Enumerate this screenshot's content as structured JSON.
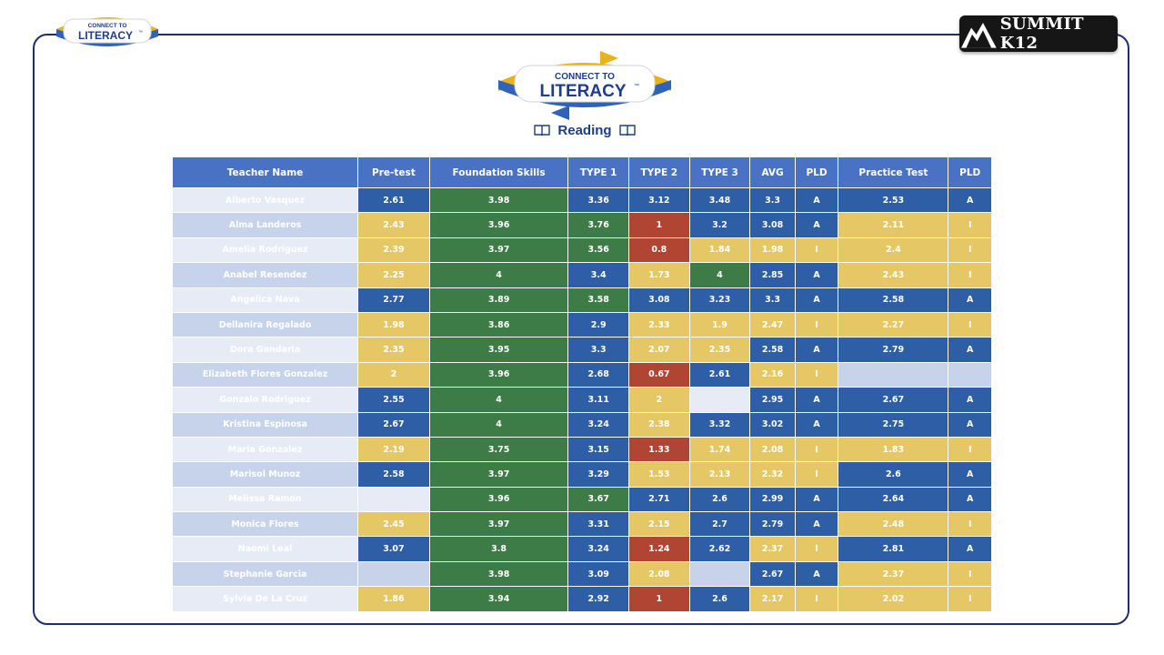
{
  "logo": {
    "small_line1": "CONNECT TO",
    "small_line2": "LITERACY",
    "big_line1": "CONNECT TO",
    "big_line2": "LITERACY",
    "tm": "™"
  },
  "brand": {
    "summit_text": "SUMMIT K12"
  },
  "subject": {
    "label": "Reading",
    "left_icon": "book-icon",
    "right_icon": "book-icon"
  },
  "colors": {
    "header": "#4a72c4",
    "blue": "#2e5ea6",
    "green": "#3d7c46",
    "yellow": "#e5c865",
    "red": "#b04533",
    "row_light": "#e6ebf6",
    "row_dark": "#c6d3ea",
    "frame": "#1f2d6b"
  },
  "table": {
    "headers": [
      "Teacher Name",
      "Pre-test",
      "Foundation Skills",
      "TYPE 1",
      "TYPE 2",
      "TYPE 3",
      "AVG",
      "PLD",
      "Practice Test",
      "PLD"
    ],
    "rows": [
      {
        "name": "Alberto Vasquez",
        "cells": [
          [
            "2.61",
            "blue"
          ],
          [
            "3.98",
            "green"
          ],
          [
            "3.36",
            "blue"
          ],
          [
            "3.12",
            "blue"
          ],
          [
            "3.48",
            "blue"
          ],
          [
            "3.3",
            "blue"
          ],
          [
            "A",
            "blue"
          ],
          [
            "2.53",
            "blue"
          ],
          [
            "A",
            "blue"
          ]
        ]
      },
      {
        "name": "Alma Landeros",
        "cells": [
          [
            "2.43",
            "yellow"
          ],
          [
            "3.96",
            "green"
          ],
          [
            "3.76",
            "green"
          ],
          [
            "1",
            "red"
          ],
          [
            "3.2",
            "blue"
          ],
          [
            "3.08",
            "blue"
          ],
          [
            "A",
            "blue"
          ],
          [
            "2.11",
            "yellow"
          ],
          [
            "I",
            "yellow"
          ]
        ]
      },
      {
        "name": "Amelia Rodriguez",
        "cells": [
          [
            "2.39",
            "yellow"
          ],
          [
            "3.97",
            "green"
          ],
          [
            "3.56",
            "green"
          ],
          [
            "0.8",
            "red"
          ],
          [
            "1.84",
            "yellow"
          ],
          [
            "1.98",
            "yellow"
          ],
          [
            "I",
            "yellow"
          ],
          [
            "2.4",
            "yellow"
          ],
          [
            "I",
            "yellow"
          ]
        ]
      },
      {
        "name": "Anabel Resendez",
        "cells": [
          [
            "2.25",
            "yellow"
          ],
          [
            "4",
            "green"
          ],
          [
            "3.4",
            "blue"
          ],
          [
            "1.73",
            "yellow"
          ],
          [
            "4",
            "green"
          ],
          [
            "2.85",
            "blue"
          ],
          [
            "A",
            "blue"
          ],
          [
            "2.43",
            "yellow"
          ],
          [
            "I",
            "yellow"
          ]
        ]
      },
      {
        "name": "Angelica Nava",
        "cells": [
          [
            "2.77",
            "blue"
          ],
          [
            "3.89",
            "green"
          ],
          [
            "3.58",
            "green"
          ],
          [
            "3.08",
            "blue"
          ],
          [
            "3.23",
            "blue"
          ],
          [
            "3.3",
            "blue"
          ],
          [
            "A",
            "blue"
          ],
          [
            "2.58",
            "blue"
          ],
          [
            "A",
            "blue"
          ]
        ]
      },
      {
        "name": "Dellanira Regalado",
        "cells": [
          [
            "1.98",
            "yellow"
          ],
          [
            "3.86",
            "green"
          ],
          [
            "2.9",
            "blue"
          ],
          [
            "2.33",
            "yellow"
          ],
          [
            "1.9",
            "yellow"
          ],
          [
            "2.47",
            "yellow"
          ],
          [
            "I",
            "yellow"
          ],
          [
            "2.27",
            "yellow"
          ],
          [
            "I",
            "yellow"
          ]
        ]
      },
      {
        "name": "Dora Gandaria",
        "cells": [
          [
            "2.35",
            "yellow"
          ],
          [
            "3.95",
            "green"
          ],
          [
            "3.3",
            "blue"
          ],
          [
            "2.07",
            "yellow"
          ],
          [
            "2.35",
            "yellow"
          ],
          [
            "2.58",
            "blue"
          ],
          [
            "A",
            "blue"
          ],
          [
            "2.79",
            "blue"
          ],
          [
            "A",
            "blue"
          ]
        ]
      },
      {
        "name": "Elizabeth Flores Gonzalez",
        "cells": [
          [
            "2",
            "yellow"
          ],
          [
            "3.96",
            "green"
          ],
          [
            "2.68",
            "blue"
          ],
          [
            "0.67",
            "red"
          ],
          [
            "2.61",
            "blue"
          ],
          [
            "2.16",
            "yellow"
          ],
          [
            "I",
            "yellow"
          ],
          [
            "",
            "empty"
          ],
          [
            "",
            "empty"
          ]
        ]
      },
      {
        "name": "Gonzalo Rodriguez",
        "cells": [
          [
            "2.55",
            "blue"
          ],
          [
            "4",
            "green"
          ],
          [
            "3.11",
            "blue"
          ],
          [
            "2",
            "yellow"
          ],
          [
            "",
            "empty"
          ],
          [
            "2.95",
            "blue"
          ],
          [
            "A",
            "blue"
          ],
          [
            "2.67",
            "blue"
          ],
          [
            "A",
            "blue"
          ]
        ]
      },
      {
        "name": "Kristina Espinosa",
        "cells": [
          [
            "2.67",
            "blue"
          ],
          [
            "4",
            "green"
          ],
          [
            "3.24",
            "blue"
          ],
          [
            "2.38",
            "yellow"
          ],
          [
            "3.32",
            "blue"
          ],
          [
            "3.02",
            "blue"
          ],
          [
            "A",
            "blue"
          ],
          [
            "2.75",
            "blue"
          ],
          [
            "A",
            "blue"
          ]
        ]
      },
      {
        "name": "Maria Gonzalez",
        "cells": [
          [
            "2.19",
            "yellow"
          ],
          [
            "3.75",
            "green"
          ],
          [
            "3.15",
            "blue"
          ],
          [
            "1.33",
            "red"
          ],
          [
            "1.74",
            "yellow"
          ],
          [
            "2.08",
            "yellow"
          ],
          [
            "I",
            "yellow"
          ],
          [
            "1.83",
            "yellow"
          ],
          [
            "I",
            "yellow"
          ]
        ]
      },
      {
        "name": "Marisol Munoz",
        "cells": [
          [
            "2.58",
            "blue"
          ],
          [
            "3.97",
            "green"
          ],
          [
            "3.29",
            "blue"
          ],
          [
            "1.53",
            "yellow"
          ],
          [
            "2.13",
            "yellow"
          ],
          [
            "2.32",
            "yellow"
          ],
          [
            "I",
            "yellow"
          ],
          [
            "2.6",
            "blue"
          ],
          [
            "A",
            "blue"
          ]
        ]
      },
      {
        "name": "Melissa Ramon",
        "cells": [
          [
            "",
            "empty"
          ],
          [
            "3.96",
            "green"
          ],
          [
            "3.67",
            "green"
          ],
          [
            "2.71",
            "blue"
          ],
          [
            "2.6",
            "blue"
          ],
          [
            "2.99",
            "blue"
          ],
          [
            "A",
            "blue"
          ],
          [
            "2.64",
            "blue"
          ],
          [
            "A",
            "blue"
          ]
        ]
      },
      {
        "name": "Monica Flores",
        "cells": [
          [
            "2.45",
            "yellow"
          ],
          [
            "3.97",
            "green"
          ],
          [
            "3.31",
            "blue"
          ],
          [
            "2.15",
            "yellow"
          ],
          [
            "2.7",
            "blue"
          ],
          [
            "2.79",
            "blue"
          ],
          [
            "A",
            "blue"
          ],
          [
            "2.48",
            "yellow"
          ],
          [
            "I",
            "yellow"
          ]
        ]
      },
      {
        "name": "Naomi Leal",
        "cells": [
          [
            "3.07",
            "blue"
          ],
          [
            "3.8",
            "green"
          ],
          [
            "3.24",
            "blue"
          ],
          [
            "1.24",
            "red"
          ],
          [
            "2.62",
            "blue"
          ],
          [
            "2.37",
            "yellow"
          ],
          [
            "I",
            "yellow"
          ],
          [
            "2.81",
            "blue"
          ],
          [
            "A",
            "blue"
          ]
        ]
      },
      {
        "name": "Stephanie Garcia",
        "cells": [
          [
            "",
            "empty"
          ],
          [
            "3.98",
            "green"
          ],
          [
            "3.09",
            "blue"
          ],
          [
            "2.08",
            "yellow"
          ],
          [
            "",
            "empty"
          ],
          [
            "2.67",
            "blue"
          ],
          [
            "A",
            "blue"
          ],
          [
            "2.37",
            "yellow"
          ],
          [
            "I",
            "yellow"
          ]
        ]
      },
      {
        "name": "Sylvia De La Cruz",
        "cells": [
          [
            "1.86",
            "yellow"
          ],
          [
            "3.94",
            "green"
          ],
          [
            "2.92",
            "blue"
          ],
          [
            "1",
            "red"
          ],
          [
            "2.6",
            "blue"
          ],
          [
            "2.17",
            "yellow"
          ],
          [
            "I",
            "yellow"
          ],
          [
            "2.02",
            "yellow"
          ],
          [
            "I",
            "yellow"
          ]
        ]
      }
    ]
  }
}
